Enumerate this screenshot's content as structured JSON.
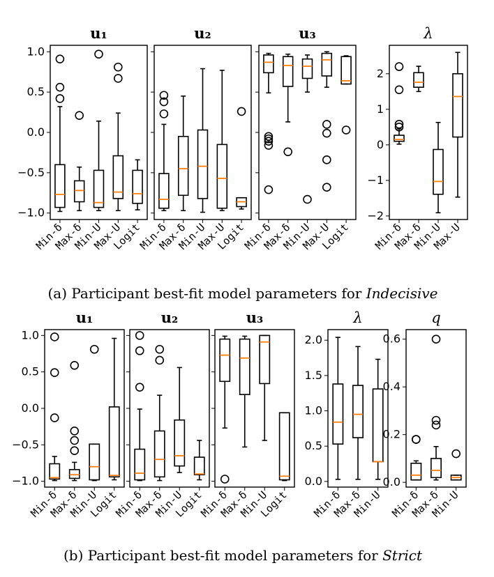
{
  "figure": {
    "caption_a": {
      "prefix": "(a) Participant best-fit model parameters for ",
      "italic": "Indecisive"
    },
    "caption_b": {
      "prefix": "(b) Participant best-fit model parameters for ",
      "italic": "Strict"
    }
  },
  "colors": {
    "median": "#ff7f0e",
    "box": "#000000"
  },
  "chart_data": [
    {
      "type": "box",
      "title": "u₁",
      "group": "a",
      "categories": [
        "Min-δ",
        "Max-δ",
        "Min-U",
        "Max-U",
        "Logit"
      ],
      "yticks": [
        1.0,
        0.5,
        0.0,
        -0.5,
        -1.0
      ],
      "ytick_labels": [
        "1.0",
        "0.5",
        "0.0",
        "−0.5",
        "−1.0"
      ],
      "ylim": [
        -1.08,
        1.08
      ],
      "boxes": [
        {
          "whislo": -0.98,
          "q1": -0.93,
          "med": -0.77,
          "q3": -0.4,
          "whishi": 0.32,
          "fliers": [
            0.91,
            0.56,
            0.42
          ]
        },
        {
          "whislo": -0.97,
          "q1": -0.86,
          "med": -0.72,
          "q3": -0.6,
          "whishi": -0.43,
          "fliers": [
            0.21
          ]
        },
        {
          "whislo": -0.97,
          "q1": -0.93,
          "med": -0.87,
          "q3": -0.47,
          "whishi": 0.14,
          "fliers": [
            0.97
          ]
        },
        {
          "whislo": -0.97,
          "q1": -0.82,
          "med": -0.74,
          "q3": -0.29,
          "whishi": 0.24,
          "fliers": [
            0.81,
            0.67
          ]
        },
        {
          "whislo": -0.96,
          "q1": -0.88,
          "med": -0.76,
          "q3": -0.47,
          "whishi": -0.34,
          "fliers": []
        }
      ]
    },
    {
      "type": "box",
      "title": "u₂",
      "group": "a",
      "categories": [
        "Min-δ",
        "Max-δ",
        "Min-U",
        "Max-U",
        "Logit"
      ],
      "yticks": [
        1.0,
        0.5,
        0.0,
        -0.5,
        -1.0
      ],
      "ytick_labels": [
        "",
        "",
        "",
        "",
        ""
      ],
      "ylim": [
        -1.08,
        1.08
      ],
      "boxes": [
        {
          "whislo": -0.97,
          "q1": -0.94,
          "med": -0.83,
          "q3": -0.51,
          "whishi": 0.1,
          "fliers": [
            0.46,
            0.38,
            0.23
          ]
        },
        {
          "whislo": -0.97,
          "q1": -0.78,
          "med": -0.45,
          "q3": -0.05,
          "whishi": 0.45,
          "fliers": []
        },
        {
          "whislo": -0.99,
          "q1": -0.82,
          "med": -0.42,
          "q3": 0.03,
          "whishi": 0.79,
          "fliers": []
        },
        {
          "whislo": -0.97,
          "q1": -0.94,
          "med": -0.57,
          "q3": -0.15,
          "whishi": 0.77,
          "fliers": []
        },
        {
          "whislo": -0.95,
          "q1": -0.92,
          "med": -0.86,
          "q3": -0.81,
          "whishi": -0.81,
          "fliers": [
            0.26
          ]
        }
      ]
    },
    {
      "type": "box",
      "title": "u₃",
      "group": "a",
      "categories": [
        "Min-δ",
        "Max-δ",
        "Min-U",
        "Max-U",
        "Logit"
      ],
      "yticks": [
        1.0,
        0.5,
        0.0,
        -0.5,
        -1.0
      ],
      "ytick_labels": [
        "",
        "",
        "",
        "",
        ""
      ],
      "ylim": [
        -1.08,
        1.08
      ],
      "boxes": [
        {
          "whislo": 0.49,
          "q1": 0.74,
          "med": 0.87,
          "q3": 0.96,
          "whishi": 0.98,
          "fliers": [
            -0.05,
            -0.08,
            -0.11,
            -0.16,
            -0.71
          ]
        },
        {
          "whislo": 0.13,
          "q1": 0.57,
          "med": 0.83,
          "q3": 0.94,
          "whishi": 0.97,
          "fliers": [
            -0.24
          ]
        },
        {
          "whislo": 0.5,
          "q1": 0.67,
          "med": 0.82,
          "q3": 0.91,
          "whishi": 0.96,
          "fliers": [
            -0.83
          ]
        },
        {
          "whislo": 0.56,
          "q1": 0.7,
          "med": 0.9,
          "q3": 0.98,
          "whishi": 1.0,
          "fliers": [
            0.1,
            -0.01,
            -0.34,
            -0.68
          ]
        },
        {
          "whislo": 0.6,
          "q1": 0.6,
          "med": 0.64,
          "q3": 0.94,
          "whishi": 0.95,
          "fliers": [
            0.03
          ]
        }
      ]
    },
    {
      "type": "box",
      "title": "λ",
      "group": "a",
      "categories": [
        "Min-δ",
        "Max-δ",
        "Min-U",
        "Max-U"
      ],
      "yticks": [
        2,
        1,
        0,
        -1,
        -2
      ],
      "ytick_labels": [
        "2",
        "1",
        "0",
        "−1",
        "−2"
      ],
      "ylim": [
        -2.1,
        2.8
      ],
      "boxes": [
        {
          "whislo": 0.02,
          "q1": 0.1,
          "med": 0.15,
          "q3": 0.27,
          "whishi": 0.45,
          "fliers": [
            2.2,
            1.55,
            0.58,
            0.5
          ]
        },
        {
          "whislo": 1.5,
          "q1": 1.62,
          "med": 1.76,
          "q3": 2.03,
          "whishi": 2.21,
          "fliers": []
        },
        {
          "whislo": -1.91,
          "q1": -1.39,
          "med": -1.03,
          "q3": -0.13,
          "whishi": 0.63,
          "fliers": []
        },
        {
          "whislo": -1.47,
          "q1": 0.22,
          "med": 1.36,
          "q3": 2.0,
          "whishi": 2.6,
          "fliers": []
        }
      ]
    },
    {
      "type": "box",
      "title": "u₁",
      "group": "b",
      "categories": [
        "Min-δ",
        "Max-δ",
        "Min-U",
        "Logit"
      ],
      "yticks": [
        1.0,
        0.5,
        0.0,
        -0.5,
        -1.0
      ],
      "ytick_labels": [
        "1.0",
        "0.5",
        "0.0",
        "−0.5",
        "−1.0"
      ],
      "ylim": [
        -1.08,
        1.08
      ],
      "boxes": [
        {
          "whislo": -0.99,
          "q1": -0.97,
          "med": -0.95,
          "q3": -0.76,
          "whishi": -0.66,
          "fliers": [
            0.98,
            0.49,
            -0.13
          ]
        },
        {
          "whislo": -0.99,
          "q1": -0.96,
          "med": -0.91,
          "q3": -0.84,
          "whishi": -0.74,
          "fliers": [
            0.59,
            -0.31,
            -0.44,
            -0.58
          ]
        },
        {
          "whislo": -0.99,
          "q1": -0.98,
          "med": -0.8,
          "q3": -0.49,
          "whishi": -0.49,
          "fliers": [
            0.81
          ]
        },
        {
          "whislo": -0.98,
          "q1": -0.94,
          "med": -0.92,
          "q3": 0.02,
          "whishi": 0.96,
          "fliers": []
        }
      ]
    },
    {
      "type": "box",
      "title": "u₂",
      "group": "b",
      "categories": [
        "Min-δ",
        "Max-δ",
        "Min-U",
        "Logit"
      ],
      "yticks": [
        1.0,
        0.5,
        0.0,
        -0.5,
        -1.0
      ],
      "ytick_labels": [
        "",
        "",
        "",
        "",
        ""
      ],
      "ylim": [
        -1.08,
        1.08
      ],
      "boxes": [
        {
          "whislo": -0.99,
          "q1": -0.98,
          "med": -0.89,
          "q3": -0.56,
          "whishi": -0.01,
          "fliers": [
            1.0,
            0.79,
            0.29
          ]
        },
        {
          "whislo": -0.99,
          "q1": -0.94,
          "med": -0.7,
          "q3": -0.31,
          "whishi": 0.18,
          "fliers": [
            0.81,
            0.66
          ]
        },
        {
          "whislo": -0.88,
          "q1": -0.79,
          "med": -0.65,
          "q3": -0.16,
          "whishi": 0.56,
          "fliers": []
        },
        {
          "whislo": -0.98,
          "q1": -0.91,
          "med": -0.9,
          "q3": -0.67,
          "whishi": -0.44,
          "fliers": []
        }
      ]
    },
    {
      "type": "box",
      "title": "u₃",
      "group": "b",
      "categories": [
        "Min-δ",
        "Max-δ",
        "Min-U",
        "Logit"
      ],
      "yticks": [
        1.0,
        0.5,
        0.0,
        -0.5,
        -1.0
      ],
      "ytick_labels": [
        "",
        "",
        "",
        "",
        ""
      ],
      "ylim": [
        -1.08,
        1.08
      ],
      "boxes": [
        {
          "whislo": -0.27,
          "q1": 0.37,
          "med": 0.73,
          "q3": 0.95,
          "whishi": 0.99,
          "fliers": [
            -0.97
          ]
        },
        {
          "whislo": -0.53,
          "q1": 0.19,
          "med": 0.69,
          "q3": 0.95,
          "whishi": 0.99,
          "fliers": []
        },
        {
          "whislo": -0.44,
          "q1": 0.34,
          "med": 0.91,
          "q3": 1.0,
          "whishi": 1.0,
          "fliers": []
        },
        {
          "whislo": -0.99,
          "q1": -0.98,
          "med": -0.93,
          "q3": -0.06,
          "whishi": -0.06,
          "fliers": []
        }
      ]
    },
    {
      "type": "box",
      "title": "λ",
      "group": "b",
      "categories": [
        "Min-δ",
        "Max-δ",
        "Min-U"
      ],
      "yticks": [
        2.0,
        1.5,
        1.0,
        0.5,
        0.0
      ],
      "ytick_labels": [
        "2.0",
        "1.5",
        "1.0",
        "0.5",
        "0.0"
      ],
      "ylim": [
        -0.08,
        2.15
      ],
      "boxes": [
        {
          "whislo": 0.03,
          "q1": 0.53,
          "med": 0.84,
          "q3": 1.38,
          "whishi": 2.04,
          "fliers": []
        },
        {
          "whislo": 0.03,
          "q1": 0.62,
          "med": 0.95,
          "q3": 1.36,
          "whishi": 1.91,
          "fliers": []
        },
        {
          "whislo": 0.03,
          "q1": 0.28,
          "med": 0.28,
          "q3": 1.31,
          "whishi": 1.73,
          "fliers": []
        }
      ]
    },
    {
      "type": "box",
      "title": "q",
      "group": "b",
      "categories": [
        "Min-δ",
        "Max-δ",
        "Min-U"
      ],
      "yticks": [
        0.6,
        0.4,
        0.2,
        0.0
      ],
      "ytick_labels": [
        "0.6",
        "0.4",
        "0.2",
        "0.0"
      ],
      "ylim": [
        -0.02,
        0.64
      ],
      "boxes": [
        {
          "whislo": 0.01,
          "q1": 0.01,
          "med": 0.03,
          "q3": 0.08,
          "whishi": 0.09,
          "fliers": [
            0.18,
            0.18
          ]
        },
        {
          "whislo": 0.01,
          "q1": 0.02,
          "med": 0.05,
          "q3": 0.1,
          "whishi": 0.15,
          "fliers": [
            0.6,
            0.26,
            0.24
          ]
        },
        {
          "whislo": 0.01,
          "q1": 0.01,
          "med": 0.02,
          "q3": 0.03,
          "whishi": 0.03,
          "fliers": [
            0.12
          ]
        }
      ]
    }
  ]
}
